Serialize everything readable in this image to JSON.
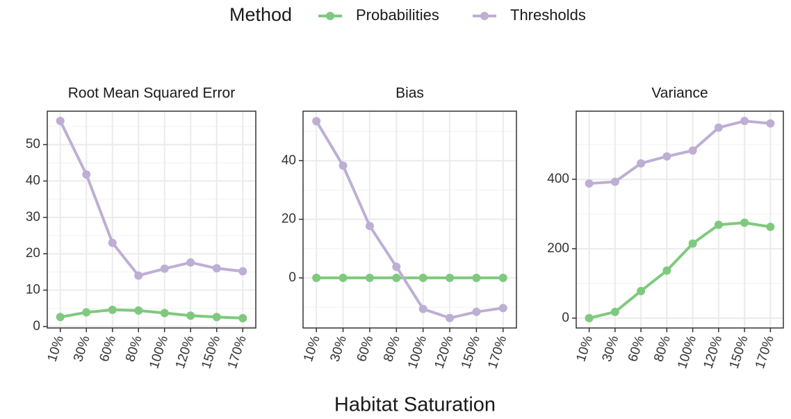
{
  "legend": {
    "title": "Method"
  },
  "x_label": "Habitat Saturation",
  "chart_data": [
    {
      "type": "line",
      "title": "Root Mean Squared Error",
      "categories": [
        "10%",
        "30%",
        "60%",
        "80%",
        "100%",
        "120%",
        "150%",
        "170%"
      ],
      "series": [
        {
          "name": "Probabilities",
          "color": "#7fc97f",
          "values": [
            2.6,
            3.9,
            4.6,
            4.4,
            3.7,
            3.0,
            2.6,
            2.3
          ]
        },
        {
          "name": "Thresholds",
          "color": "#beaed4",
          "values": [
            56.5,
            41.8,
            23,
            14,
            15.9,
            17.6,
            16,
            15.2
          ]
        }
      ],
      "ylim": [
        -0.4,
        59.2
      ],
      "yticks": [
        0,
        10,
        20,
        30,
        40,
        50
      ],
      "grid": true
    },
    {
      "type": "line",
      "title": "Bias",
      "categories": [
        "10%",
        "30%",
        "60%",
        "80%",
        "100%",
        "120%",
        "150%",
        "170%"
      ],
      "series": [
        {
          "name": "Probabilities",
          "color": "#7fc97f",
          "values": [
            0,
            0,
            0,
            0,
            0,
            0,
            0,
            0
          ]
        },
        {
          "name": "Thresholds",
          "color": "#beaed4",
          "values": [
            53.5,
            38.3,
            17.7,
            3.8,
            -10.6,
            -13.7,
            -11.6,
            -10.3
          ]
        }
      ],
      "ylim": [
        -17.1,
        56.9
      ],
      "yticks": [
        0,
        20,
        40
      ],
      "grid": true
    },
    {
      "type": "line",
      "title": "Variance",
      "categories": [
        "10%",
        "30%",
        "60%",
        "80%",
        "100%",
        "120%",
        "150%",
        "170%"
      ],
      "series": [
        {
          "name": "Probabilities",
          "color": "#7fc97f",
          "values": [
            0,
            18,
            78,
            137,
            215,
            269,
            275,
            263
          ]
        },
        {
          "name": "Thresholds",
          "color": "#beaed4",
          "values": [
            388,
            393,
            446,
            466,
            483,
            549,
            568,
            561
          ]
        }
      ],
      "ylim": [
        -28.4,
        596.4
      ],
      "yticks": [
        0,
        200,
        400
      ],
      "grid": true
    }
  ]
}
